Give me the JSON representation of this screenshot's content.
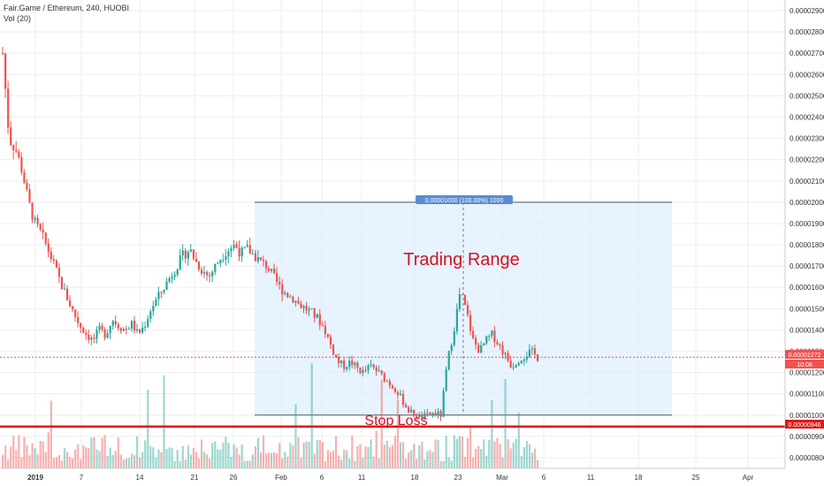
{
  "header": {
    "symbol_line": "Fair.Game  / Ethereum, 240, HUOBI",
    "volume_line": "Vol (20)"
  },
  "colors": {
    "up": "#26a69a",
    "down": "#ef5350",
    "range_fill": "#ddeeff",
    "annotation": "#d3121e",
    "tag_bg": "#5b8bd0"
  },
  "chart_data": {
    "type": "candlestick",
    "title": "",
    "ylim": [
      7.5e-06,
      2.95e-05
    ],
    "y_ticks": [
      "0.00002900",
      "0.00002800",
      "0.00002700",
      "0.00002600",
      "0.00002500",
      "0.00002400",
      "0.00002300",
      "0.00002200",
      "0.00002100",
      "0.00002000",
      "0.00001900",
      "0.00001800",
      "0.00001700",
      "0.00001600",
      "0.00001500",
      "0.00001400",
      "0.00001300",
      "0.00001200",
      "0.00001100",
      "0.00001000",
      "0.00000900",
      "0.00000800"
    ],
    "x_ticks": [
      "2019",
      "7",
      "14",
      "21",
      "26",
      "Feb",
      "6",
      "11",
      "18",
      "23",
      "Mar",
      "6",
      "11",
      "18",
      "25",
      "Apr"
    ],
    "price_path": [
      [
        0,
        2.7e-05
      ],
      [
        2,
        2.3e-05
      ],
      [
        4,
        2.25e-05
      ],
      [
        6,
        2.15e-05
      ],
      [
        8,
        2e-05
      ],
      [
        10,
        1.9e-05
      ],
      [
        12,
        1.85e-05
      ],
      [
        14,
        1.78e-05
      ],
      [
        16,
        1.7e-05
      ],
      [
        18,
        1.62e-05
      ],
      [
        20,
        1.55e-05
      ],
      [
        22,
        1.48e-05
      ],
      [
        24,
        1.42e-05
      ],
      [
        26,
        1.38e-05
      ],
      [
        28,
        1.35e-05
      ],
      [
        30,
        1.4e-05
      ],
      [
        32,
        1.38e-05
      ],
      [
        34,
        1.45e-05
      ],
      [
        36,
        1.42e-05
      ],
      [
        38,
        1.4e-05
      ],
      [
        40,
        1.43e-05
      ],
      [
        42,
        1.38e-05
      ],
      [
        44,
        1.42e-05
      ],
      [
        46,
        1.5e-05
      ],
      [
        48,
        1.55e-05
      ],
      [
        50,
        1.6e-05
      ],
      [
        52,
        1.65e-05
      ],
      [
        54,
        1.7e-05
      ],
      [
        56,
        1.75e-05
      ],
      [
        58,
        1.78e-05
      ],
      [
        60,
        1.72e-05
      ],
      [
        62,
        1.68e-05
      ],
      [
        64,
        1.65e-05
      ],
      [
        66,
        1.7e-05
      ],
      [
        68,
        1.75e-05
      ],
      [
        70,
        1.78e-05
      ],
      [
        72,
        1.8e-05
      ],
      [
        74,
        1.76e-05
      ],
      [
        76,
        1.78e-05
      ],
      [
        78,
        1.75e-05
      ],
      [
        80,
        1.72e-05
      ],
      [
        82,
        1.7e-05
      ],
      [
        84,
        1.65e-05
      ],
      [
        86,
        1.6e-05
      ],
      [
        88,
        1.57e-05
      ],
      [
        90,
        1.55e-05
      ],
      [
        92,
        1.52e-05
      ],
      [
        94,
        1.5e-05
      ],
      [
        96,
        1.48e-05
      ],
      [
        98,
        1.45e-05
      ],
      [
        100,
        1.4e-05
      ],
      [
        102,
        1.32e-05
      ],
      [
        104,
        1.25e-05
      ],
      [
        106,
        1.23e-05
      ],
      [
        108,
        1.25e-05
      ],
      [
        110,
        1.22e-05
      ],
      [
        112,
        1.2e-05
      ],
      [
        114,
        1.23e-05
      ],
      [
        116,
        1.21e-05
      ],
      [
        118,
        1.18e-05
      ],
      [
        120,
        1.15e-05
      ],
      [
        122,
        1.12e-05
      ],
      [
        124,
        1.07e-05
      ],
      [
        126,
        1.02e-05
      ],
      [
        128,
        1e-05
      ],
      [
        130,
        9.9e-06
      ],
      [
        132,
        1e-05
      ],
      [
        134,
        1.01e-05
      ],
      [
        136,
        1e-05
      ],
      [
        138,
        1.25e-05
      ],
      [
        140,
        1.4e-05
      ],
      [
        142,
        1.58e-05
      ],
      [
        144,
        1.48e-05
      ],
      [
        146,
        1.35e-05
      ],
      [
        148,
        1.3e-05
      ],
      [
        150,
        1.35e-05
      ],
      [
        152,
        1.38e-05
      ],
      [
        154,
        1.33e-05
      ],
      [
        156,
        1.28e-05
      ],
      [
        158,
        1.23e-05
      ],
      [
        160,
        1.26e-05
      ],
      [
        162,
        1.28e-05
      ],
      [
        164,
        1.3e-05
      ],
      [
        166,
        1.27e-05
      ]
    ],
    "current_price": "0.00001272",
    "current_time": "10:08",
    "stop_loss_price": "0.00000946",
    "range_top": 2e-05,
    "range_bottom": 1e-05,
    "measure_label": "0.00001000 (100.00%) 1000"
  },
  "annotations": {
    "range_label": "Trading Range",
    "stop_label": "Stop Loss"
  }
}
